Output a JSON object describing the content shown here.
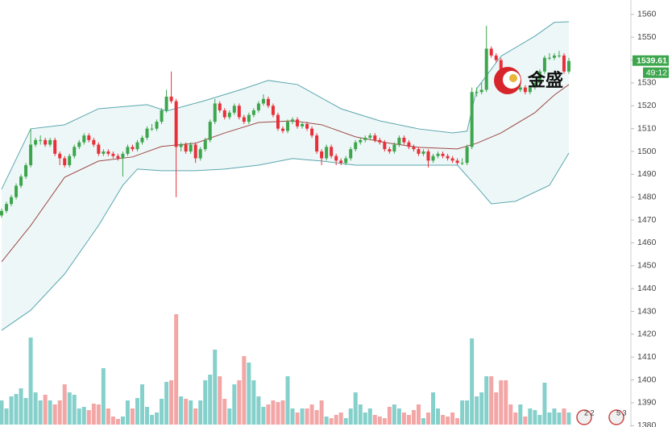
{
  "chart_data": {
    "type": "candlestick",
    "ylim": [
      1379.4,
      1566.3
    ],
    "yticks": [
      1380,
      1390,
      1400,
      1410,
      1420,
      1430,
      1440,
      1450,
      1460,
      1470,
      1480,
      1490,
      1500,
      1510,
      1520,
      1530,
      1540,
      1550,
      1560
    ],
    "up_color": "#3da64d",
    "down_color": "#e8303a",
    "volume_up_color": "#86d0cb",
    "volume_down_color": "#f3a6a6",
    "open": [
      1472,
      1474,
      1477,
      1480,
      1485,
      1489,
      1494,
      1503,
      1505,
      1505,
      1503,
      1505,
      1499,
      1497,
      1494,
      1498,
      1502,
      1504,
      1507,
      1505,
      1503,
      1499,
      1500,
      1499,
      1498,
      1497,
      1499,
      1502,
      1501,
      1504,
      1506,
      1510,
      1510,
      1513,
      1518,
      1524,
      1522,
      1502,
      1503,
      1500,
      1503,
      1497,
      1501,
      1505,
      1513,
      1521,
      1518,
      1515,
      1517,
      1520,
      1515,
      1513,
      1516,
      1518,
      1521,
      1523,
      1520,
      1516,
      1510,
      1509,
      1513,
      1514,
      1511,
      1512,
      1510,
      1507,
      1500,
      1497,
      1502,
      1498,
      1496,
      1495,
      1497,
      1501,
      1504,
      1505,
      1506,
      1507,
      1505,
      1504,
      1501,
      1500,
      1503,
      1506,
      1504,
      1502,
      1501,
      1499,
      1500,
      1496,
      1498,
      1499,
      1498,
      1497,
      1496,
      1495,
      1495,
      1502,
      1526,
      1526,
      1527,
      1545,
      1542,
      1540,
      1535,
      1530,
      1528,
      1527,
      1528,
      1526,
      1528,
      1530,
      1535,
      1541,
      1541,
      1542,
      1542,
      1535
    ],
    "high": [
      1475,
      1478,
      1481,
      1486,
      1490,
      1495,
      1510,
      1506,
      1507,
      1506,
      1506,
      1506,
      1500,
      1498,
      1499,
      1503,
      1505,
      1508,
      1508,
      1506,
      1504,
      1501,
      1501,
      1500,
      1499,
      1500,
      1503,
      1503,
      1505,
      1507,
      1511,
      1512,
      1514,
      1519,
      1527,
      1535,
      1523,
      1504,
      1504,
      1504,
      1504,
      1502,
      1506,
      1514,
      1523,
      1522,
      1519,
      1518,
      1521,
      1521,
      1516,
      1517,
      1519,
      1522,
      1525,
      1524,
      1521,
      1517,
      1511,
      1514,
      1515,
      1515,
      1513,
      1513,
      1511,
      1508,
      1501,
      1503,
      1503,
      1499,
      1497,
      1498,
      1502,
      1505,
      1506,
      1507,
      1508,
      1508,
      1506,
      1505,
      1502,
      1504,
      1507,
      1507,
      1505,
      1503,
      1502,
      1501,
      1501,
      1499,
      1500,
      1500,
      1499,
      1498,
      1497,
      1497,
      1503,
      1528,
      1528,
      1530,
      1555,
      1546,
      1543,
      1541,
      1536,
      1531,
      1529,
      1529,
      1529,
      1529,
      1531,
      1536,
      1542,
      1543,
      1543,
      1544,
      1543,
      1541
    ],
    "low": [
      1471,
      1473,
      1476,
      1479,
      1484,
      1488,
      1493,
      1502,
      1503,
      1502,
      1502,
      1498,
      1494,
      1493,
      1493,
      1497,
      1501,
      1503,
      1504,
      1502,
      1498,
      1498,
      1498,
      1497,
      1496,
      1489,
      1498,
      1500,
      1500,
      1503,
      1505,
      1509,
      1509,
      1512,
      1517,
      1521,
      1480,
      1500,
      1499,
      1499,
      1495,
      1496,
      1500,
      1504,
      1512,
      1517,
      1514,
      1514,
      1516,
      1514,
      1512,
      1512,
      1515,
      1517,
      1520,
      1519,
      1515,
      1509,
      1508,
      1508,
      1512,
      1510,
      1510,
      1509,
      1506,
      1499,
      1494,
      1496,
      1497,
      1494,
      1494,
      1494,
      1496,
      1500,
      1503,
      1504,
      1505,
      1504,
      1503,
      1500,
      1499,
      1499,
      1502,
      1503,
      1501,
      1500,
      1498,
      1498,
      1493,
      1495,
      1497,
      1497,
      1496,
      1495,
      1494,
      1494,
      1494,
      1501,
      1524,
      1525,
      1526,
      1541,
      1539,
      1534,
      1529,
      1527,
      1526,
      1526,
      1525,
      1525,
      1527,
      1529,
      1534,
      1540,
      1540,
      1541,
      1534,
      1534
    ],
    "close": [
      1474,
      1477,
      1480,
      1485,
      1489,
      1494,
      1503,
      1505,
      1505,
      1503,
      1505,
      1499,
      1497,
      1494,
      1498,
      1502,
      1504,
      1507,
      1505,
      1503,
      1499,
      1500,
      1499,
      1498,
      1497,
      1499,
      1502,
      1501,
      1504,
      1506,
      1510,
      1510,
      1513,
      1518,
      1524,
      1522,
      1502,
      1503,
      1500,
      1503,
      1497,
      1501,
      1505,
      1513,
      1521,
      1518,
      1515,
      1517,
      1520,
      1515,
      1513,
      1516,
      1518,
      1521,
      1523,
      1520,
      1516,
      1510,
      1509,
      1513,
      1514,
      1511,
      1512,
      1510,
      1507,
      1500,
      1497,
      1502,
      1498,
      1496,
      1495,
      1497,
      1501,
      1504,
      1505,
      1506,
      1507,
      1505,
      1504,
      1501,
      1500,
      1503,
      1506,
      1504,
      1502,
      1501,
      1499,
      1500,
      1496,
      1498,
      1499,
      1498,
      1497,
      1496,
      1495,
      1495,
      1502,
      1526,
      1526,
      1527,
      1545,
      1542,
      1540,
      1535,
      1530,
      1528,
      1527,
      1528,
      1526,
      1528,
      1530,
      1535,
      1541,
      1541,
      1542,
      1542,
      1535,
      1539.61
    ],
    "volume": [
      30,
      20,
      35,
      38,
      45,
      33,
      108,
      40,
      30,
      37,
      30,
      25,
      30,
      50,
      40,
      37,
      20,
      22,
      18,
      26,
      25,
      70,
      20,
      10,
      7,
      10,
      30,
      20,
      33,
      50,
      22,
      12,
      15,
      32,
      53,
      55,
      137,
      35,
      32,
      30,
      20,
      30,
      55,
      62,
      93,
      60,
      32,
      20,
      50,
      55,
      85,
      77,
      55,
      35,
      22,
      25,
      30,
      28,
      30,
      60,
      20,
      15,
      20,
      20,
      25,
      18,
      30,
      10,
      8,
      12,
      15,
      8,
      20,
      40,
      25,
      15,
      20,
      12,
      10,
      8,
      22,
      25,
      20,
      15,
      12,
      18,
      25,
      8,
      15,
      40,
      20,
      12,
      10,
      15,
      8,
      30,
      30,
      107,
      35,
      40,
      60,
      60,
      40,
      55,
      55,
      25,
      15,
      25,
      10,
      20,
      18,
      12,
      52,
      15,
      20,
      15,
      20,
      15
    ],
    "bands": [
      {
        "color": "#5aa7ae",
        "x": [
          0,
          6,
          13,
          20,
          30,
          34,
          42,
          50,
          55,
          61,
          70,
          78,
          86,
          93,
          96,
          98,
          103,
          110,
          114,
          117
        ],
        "values": [
          1483.5,
          1509.9,
          1511.7,
          1518.7,
          1520.5,
          1517.7,
          1522.3,
          1527.5,
          1531.1,
          1529.3,
          1518.7,
          1513.4,
          1509.9,
          1508.1,
          1508.9,
          1527.5,
          1541.7,
          1550.5,
          1556.5,
          1556.8
        ]
      },
      {
        "color": "#9c4a46",
        "x": [
          0,
          6,
          13,
          20,
          27,
          33,
          40,
          46,
          53,
          60,
          66,
          73,
          80,
          86,
          94,
          98,
          103,
          110,
          114,
          117
        ],
        "values": [
          1451.7,
          1467.6,
          1488.7,
          1495.8,
          1497.6,
          1502.2,
          1503.6,
          1508.1,
          1512.7,
          1513.4,
          1511.7,
          1506.4,
          1503.6,
          1501.8,
          1501.1,
          1503.6,
          1508.1,
          1517.0,
          1524.7,
          1529.3
        ]
      },
      {
        "color": "#5aa7ae",
        "x": [
          0,
          6,
          13,
          20,
          25,
          28,
          33,
          40,
          46,
          53,
          60,
          66,
          73,
          86,
          94,
          98,
          101,
          106,
          113,
          117
        ],
        "values": [
          1421.7,
          1430.5,
          1446.4,
          1467.6,
          1485.2,
          1492.3,
          1491.6,
          1491.6,
          1492.3,
          1494.0,
          1496.9,
          1495.8,
          1494.0,
          1494.0,
          1494.0,
          1484.5,
          1477.1,
          1478.2,
          1485.2,
          1499.3
        ]
      }
    ],
    "band_fill": "#eef7f8",
    "countdown": "49:12",
    "logo_text": "金盛",
    "badges": [
      "2 2",
      "5 3"
    ]
  }
}
